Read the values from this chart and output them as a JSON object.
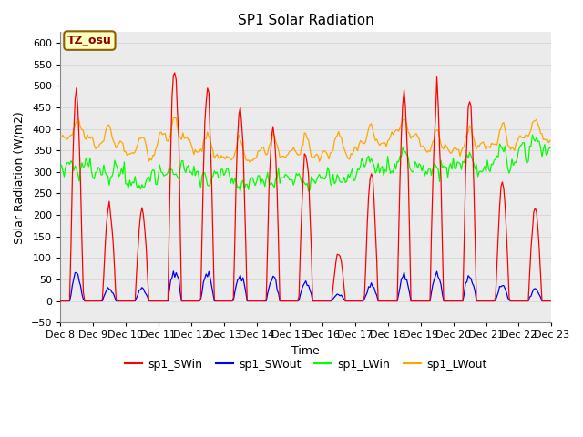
{
  "title": "SP1 Solar Radiation",
  "xlabel": "Time",
  "ylabel": "Solar Radiation (W/m2)",
  "ylim": [
    -50,
    625
  ],
  "xlim": [
    0,
    360
  ],
  "yticks": [
    -50,
    0,
    50,
    100,
    150,
    200,
    250,
    300,
    350,
    400,
    450,
    500,
    550,
    600
  ],
  "xtick_labels": [
    "Dec 8",
    "Dec 9",
    "Dec 10",
    "Dec 11",
    "Dec 12",
    "Dec 13",
    "Dec 14",
    "Dec 15",
    "Dec 16",
    "Dec 17",
    "Dec 18",
    "Dec 19",
    "Dec 20",
    "Dec 21",
    "Dec 22",
    "Dec 23"
  ],
  "xtick_positions": [
    0,
    24,
    48,
    72,
    96,
    120,
    144,
    168,
    192,
    216,
    240,
    264,
    288,
    312,
    336,
    360
  ],
  "legend_labels": [
    "sp1_SWin",
    "sp1_SWout",
    "sp1_LWin",
    "sp1_LWout"
  ],
  "legend_colors": [
    "red",
    "blue",
    "lime",
    "orange"
  ],
  "annotation_text": "TZ_osu",
  "annotation_color": "#8B0000",
  "annotation_bg": "#FFFFC0",
  "annotation_border": "#8B6000",
  "grid_color": "#D8D8D8",
  "bg_color": "#EBEBEB",
  "title_fontsize": 11,
  "axis_label_fontsize": 9,
  "tick_fontsize": 8
}
